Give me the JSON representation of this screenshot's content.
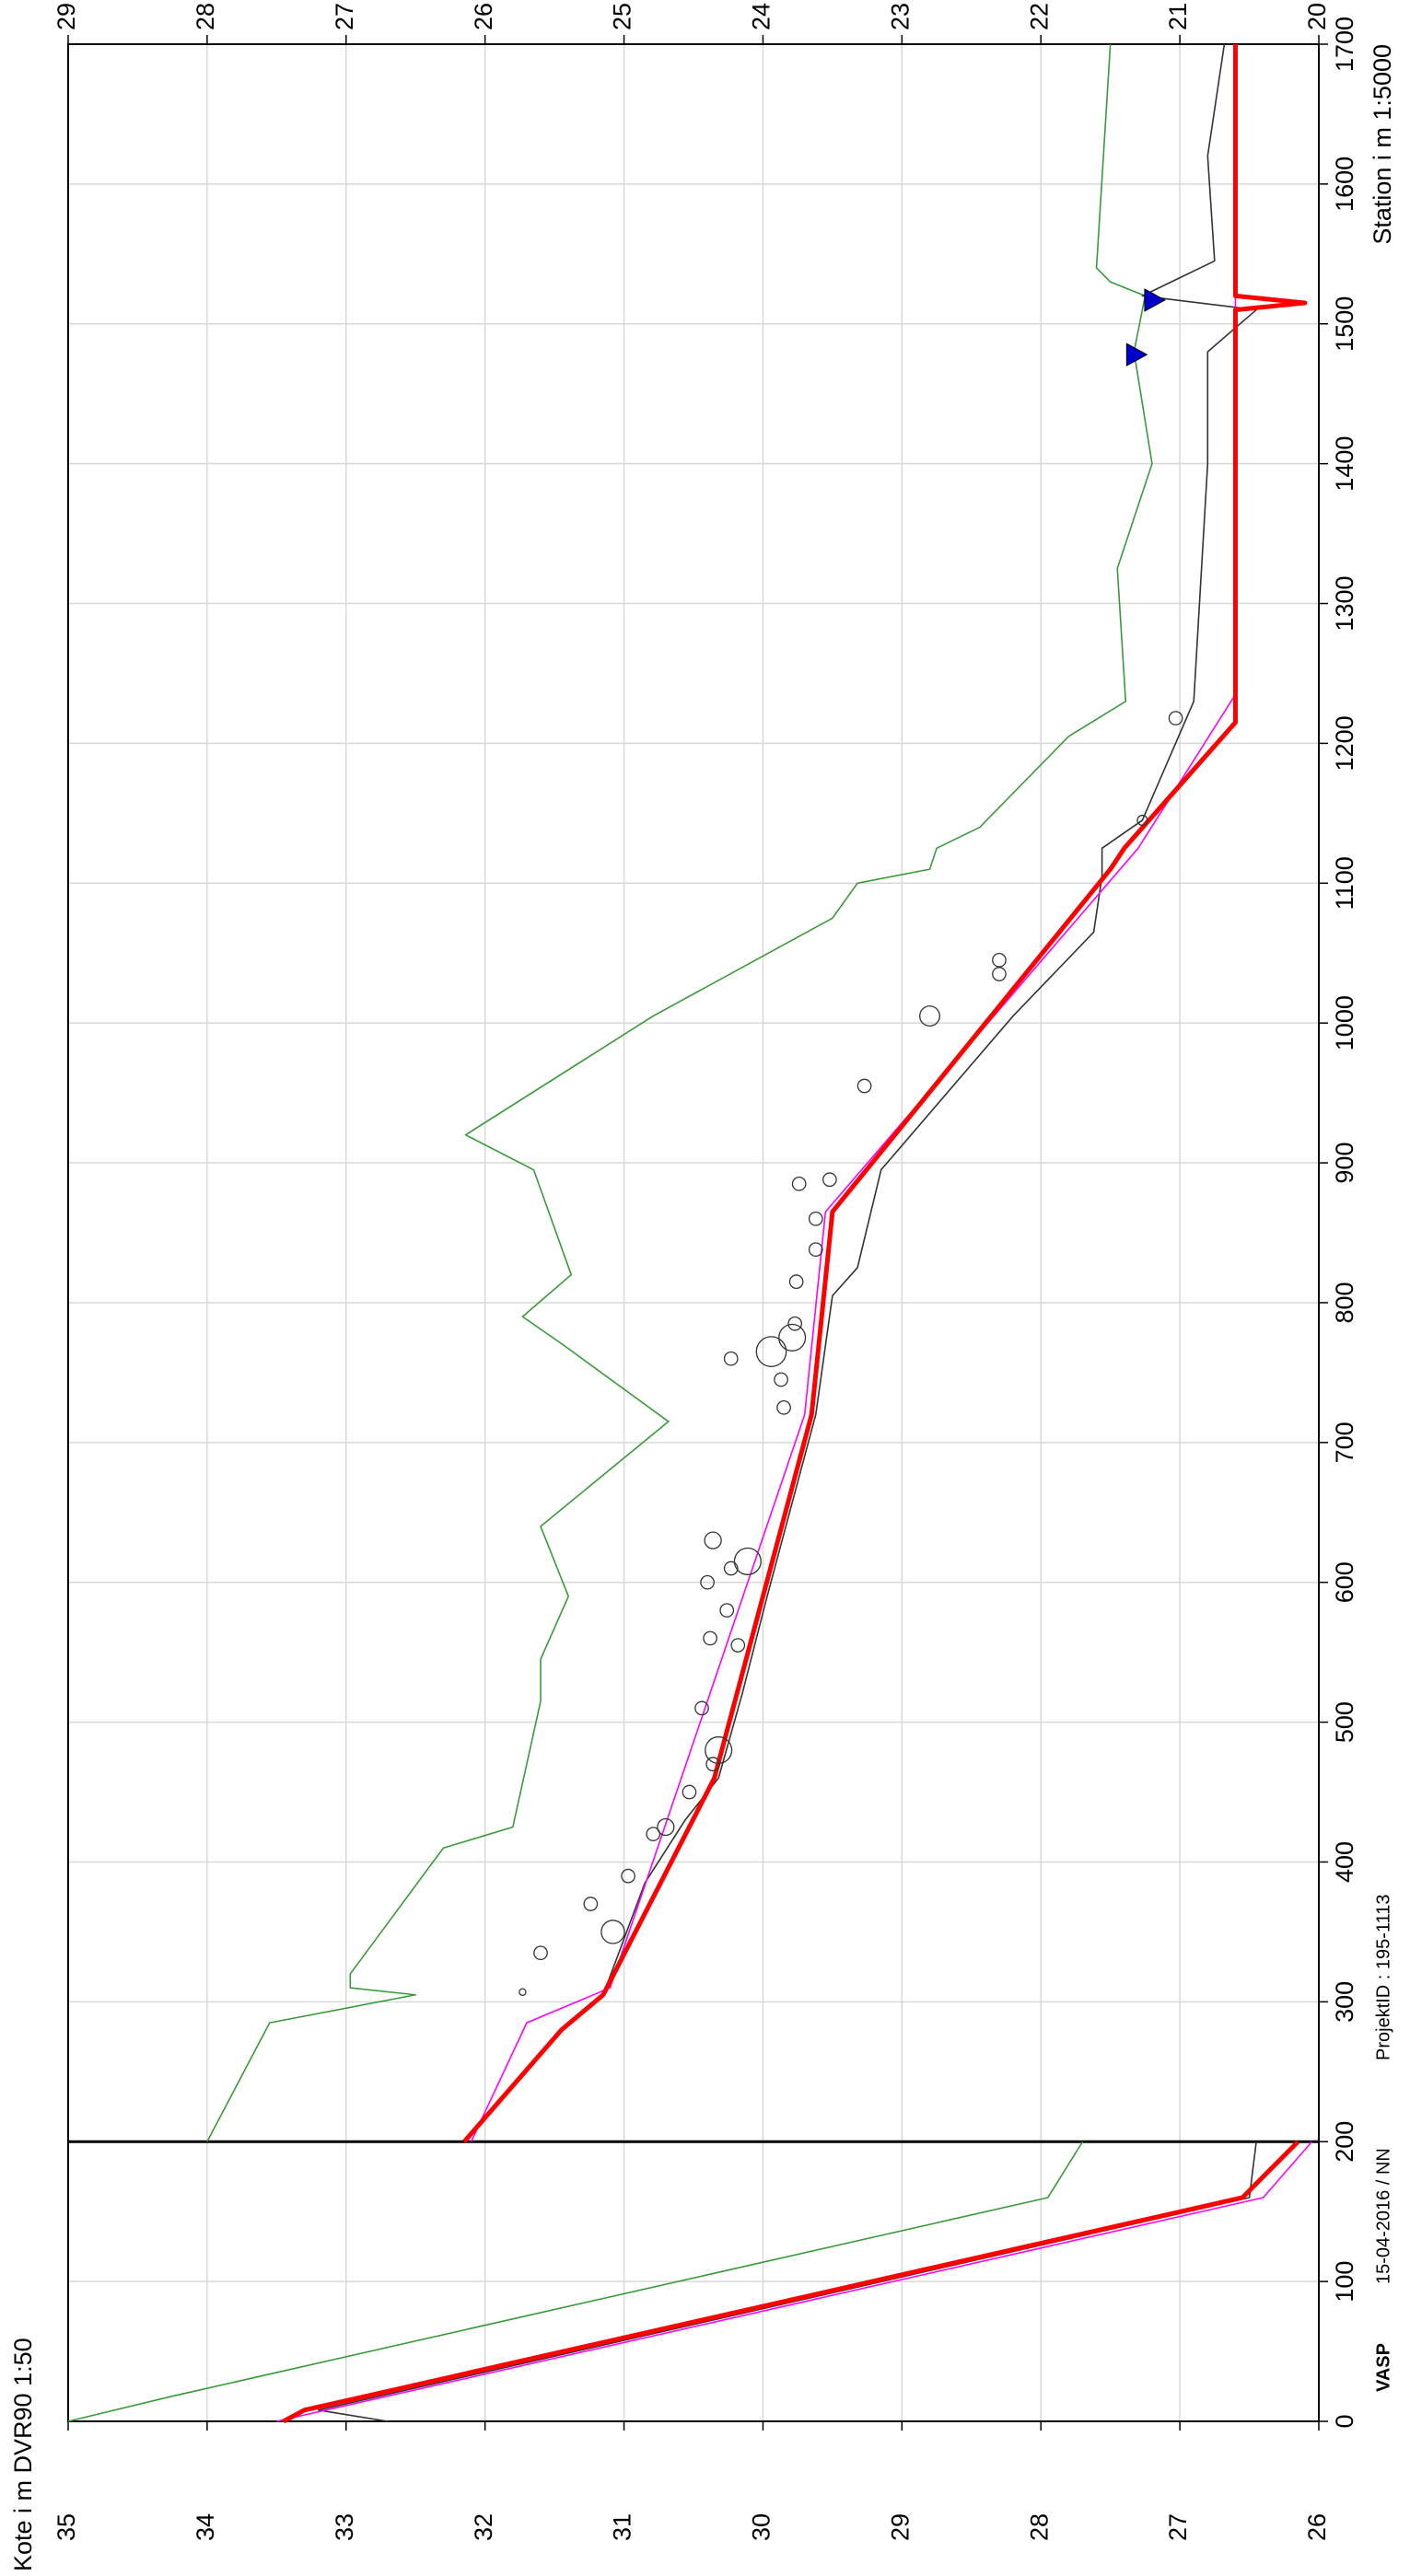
{
  "chart_data": {
    "type": "line",
    "y_label": "Kote i m DVR90 1:50",
    "x_label": "Station i m 1:5000",
    "section_label": "VASP",
    "footer_date": "15-04-2016 / NN",
    "footer_project": "ProjektID : 195-1113",
    "xlim": [
      0,
      1700
    ],
    "xticks": [
      0,
      100,
      200,
      300,
      400,
      500,
      600,
      700,
      800,
      900,
      1000,
      1100,
      1200,
      1300,
      1400,
      1500,
      1600,
      1700
    ],
    "ylim": [
      26,
      35
    ],
    "yticks": [
      26,
      27,
      28,
      29,
      30,
      31,
      32,
      33,
      34,
      35
    ],
    "y2lim": [
      20,
      29
    ],
    "y2ticks": [
      20,
      21,
      22,
      23,
      24,
      25,
      26,
      27,
      28,
      29
    ],
    "grid": true,
    "series": [
      {
        "color": "#3a9a3a",
        "axis": "y",
        "x": [
          0,
          18,
          160,
          200
        ],
        "values": [
          35.0,
          34.25,
          27.95,
          27.7
        ]
      },
      {
        "color": "#333333",
        "axis": "y",
        "x": [
          0,
          8,
          160,
          200
        ],
        "values": [
          32.7,
          33.2,
          26.5,
          26.45
        ]
      },
      {
        "color": "#ff00ff",
        "axis": "y",
        "x": [
          0,
          160,
          200
        ],
        "values": [
          33.5,
          26.4,
          26.05
        ]
      },
      {
        "color": "#ff0000",
        "axis": "y",
        "x": [
          0,
          8,
          160,
          200
        ],
        "values": [
          33.45,
          33.3,
          26.55,
          26.15
        ]
      },
      {
        "color": "#3a9a3a",
        "axis": "y2",
        "x": [
          200,
          285,
          305,
          310,
          320,
          410,
          425,
          515,
          545,
          590,
          640,
          715,
          770,
          790,
          820,
          895,
          920,
          1005,
          1075,
          1100,
          1110,
          1125,
          1140,
          1205,
          1230,
          1325,
          1400,
          1480,
          1520,
          1530,
          1540,
          1700
        ],
        "values": [
          28.0,
          27.55,
          26.5,
          26.97,
          26.97,
          26.3,
          25.8,
          25.6,
          25.6,
          25.4,
          25.6,
          24.68,
          25.44,
          25.73,
          25.38,
          25.65,
          26.14,
          24.79,
          23.5,
          23.32,
          22.8,
          22.75,
          22.44,
          21.8,
          21.39,
          21.45,
          21.2,
          21.33,
          21.25,
          21.5,
          21.6,
          21.5
        ]
      },
      {
        "color": "#333333",
        "axis": "y2",
        "x": [
          305,
          385,
          430,
          460,
          520,
          590,
          720,
          805,
          825,
          895,
          1005,
          1065,
          1105,
          1125,
          1145,
          1230,
          1400,
          1480,
          1510,
          1520,
          1545,
          1620,
          1700
        ],
        "values": [
          25.15,
          24.85,
          24.56,
          24.32,
          24.15,
          23.97,
          23.62,
          23.5,
          23.32,
          23.15,
          22.2,
          21.62,
          21.56,
          21.56,
          21.27,
          20.9,
          20.8,
          20.8,
          20.45,
          21.27,
          20.75,
          20.8,
          20.68
        ]
      },
      {
        "color": "#ff00ff",
        "axis": "y2",
        "x": [
          200,
          285,
          310,
          720,
          865,
          1125,
          1235,
          1700
        ],
        "values": [
          26.1,
          25.7,
          25.1,
          23.7,
          23.55,
          21.3,
          20.6,
          20.6
        ]
      },
      {
        "color": "#ff0000",
        "axis": "y2",
        "x": [
          200,
          280,
          305,
          460,
          720,
          865,
          1110,
          1125,
          1215,
          1510,
          1515,
          1520,
          1700
        ],
        "values": [
          26.15,
          25.45,
          25.15,
          24.35,
          23.65,
          23.5,
          21.5,
          21.4,
          20.6,
          20.6,
          20.1,
          20.6,
          20.6
        ]
      },
      {
        "color": "#333333",
        "axis": "y2",
        "marker": "circle",
        "x": [
          307,
          335,
          350,
          370,
          390,
          420,
          425,
          450,
          470,
          480,
          510,
          555,
          560,
          580,
          600,
          610,
          615,
          630,
          725,
          745,
          760,
          765,
          775,
          785,
          815,
          838,
          860,
          885,
          888,
          955,
          1005,
          1035,
          1045,
          1145,
          1218
        ],
        "values": [
          25.73,
          25.6,
          25.08,
          25.24,
          24.97,
          24.79,
          24.7,
          24.53,
          24.36,
          24.32,
          24.44,
          24.18,
          24.38,
          24.26,
          24.4,
          24.23,
          24.11,
          24.36,
          23.85,
          23.87,
          24.23,
          23.94,
          23.79,
          23.77,
          23.76,
          23.62,
          23.62,
          23.74,
          23.52,
          23.27,
          22.8,
          22.3,
          22.3,
          21.27,
          21.03
        ],
        "sizes": [
          2,
          4,
          7,
          4,
          4,
          4,
          5,
          4,
          4,
          8,
          4,
          4,
          4,
          4,
          4,
          4,
          8,
          5,
          4,
          4,
          4,
          9,
          8,
          4,
          4,
          4,
          4,
          4,
          4,
          4,
          6,
          4,
          4,
          3,
          4
        ]
      },
      {
        "color": "#0000cc",
        "axis": "y2",
        "marker": "triangle",
        "x": [
          1478,
          1517
        ],
        "values": [
          21.33,
          21.2
        ]
      }
    ]
  }
}
